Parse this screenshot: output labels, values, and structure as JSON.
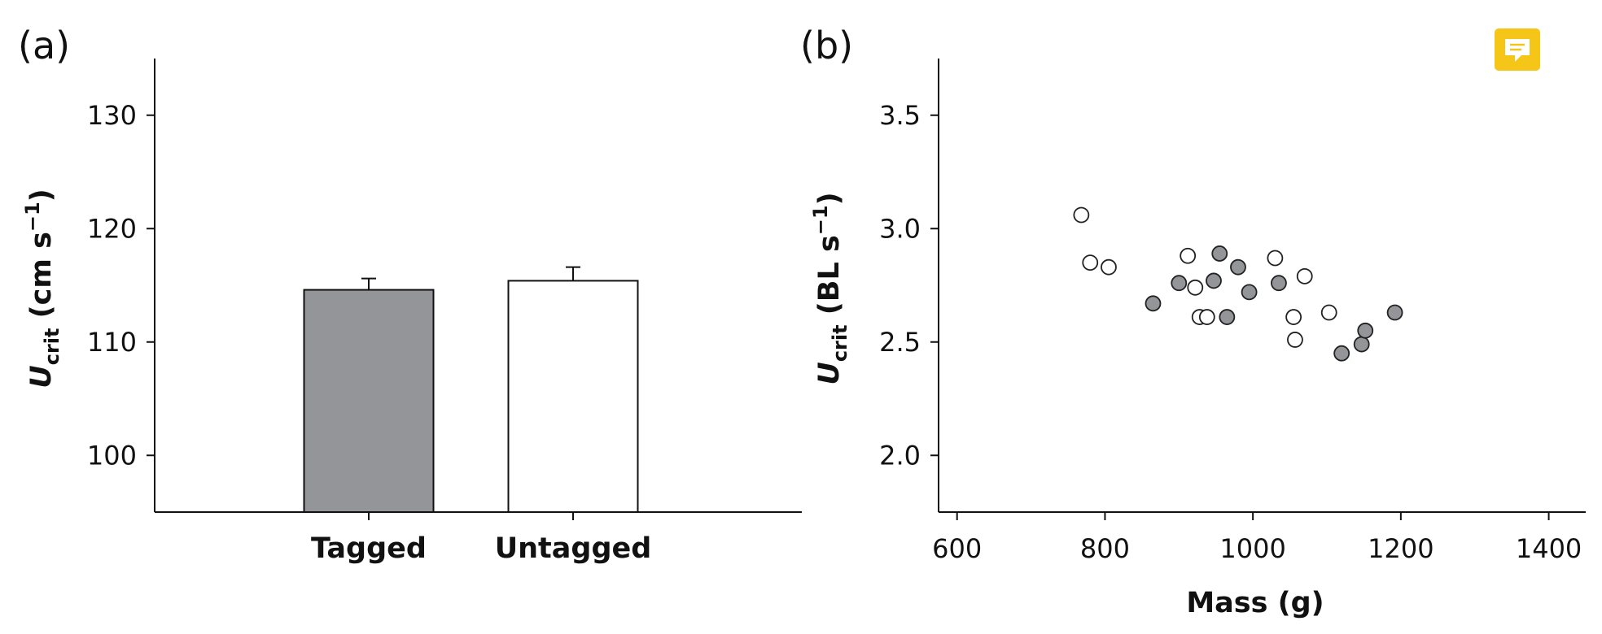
{
  "chart_data": [
    {
      "type": "bar",
      "panel_label": "(a)",
      "categories": [
        "Tagged",
        "Untagged"
      ],
      "values": [
        114.6,
        115.4
      ],
      "errors": [
        1.0,
        1.2
      ],
      "colors": [
        "#939598",
        "#ffffff"
      ],
      "ylabel_main": "U",
      "ylabel_sub": "crit",
      "ylabel_unit_pre": " (cm s",
      "ylabel_unit_sup": "−1",
      "ylabel_unit_post": ")",
      "ylim": [
        95,
        135
      ],
      "yticks": [
        100,
        110,
        120,
        130
      ],
      "ytick_labels": [
        "100",
        "110",
        "120",
        "130"
      ]
    },
    {
      "type": "scatter",
      "panel_label": "(b)",
      "xlabel": "Mass (g)",
      "ylabel_main": "U",
      "ylabel_sub": "crit",
      "ylabel_unit_pre": " (BL s",
      "ylabel_unit_sup": "−1",
      "ylabel_unit_post": ")",
      "xlim": [
        575,
        1450
      ],
      "ylim": [
        1.75,
        3.75
      ],
      "xticks": [
        600,
        800,
        1000,
        1200,
        1400
      ],
      "xtick_labels": [
        "600",
        "800",
        "1000",
        "1200",
        "1400"
      ],
      "yticks": [
        2.0,
        2.5,
        3.0,
        3.5
      ],
      "ytick_labels": [
        "2.0",
        "2.5",
        "3.0",
        "3.5"
      ],
      "series": [
        {
          "color": "#939598",
          "x": [
            865,
            900,
            947,
            955,
            965,
            980,
            995,
            1035,
            1120,
            1147,
            1152,
            1192
          ],
          "y": [
            2.67,
            2.76,
            2.77,
            2.89,
            2.61,
            2.83,
            2.72,
            2.76,
            2.45,
            2.49,
            2.55,
            2.63
          ]
        },
        {
          "color": "#ffffff",
          "x": [
            768,
            780,
            805,
            912,
            922,
            928,
            938,
            1030,
            1055,
            1057,
            1070,
            1103
          ],
          "y": [
            3.06,
            2.85,
            2.83,
            2.88,
            2.74,
            2.61,
            2.61,
            2.87,
            2.61,
            2.51,
            2.79,
            2.63
          ]
        }
      ]
    }
  ],
  "ui": {
    "comment_icon": "comment-icon",
    "accent": "#f5c518"
  }
}
